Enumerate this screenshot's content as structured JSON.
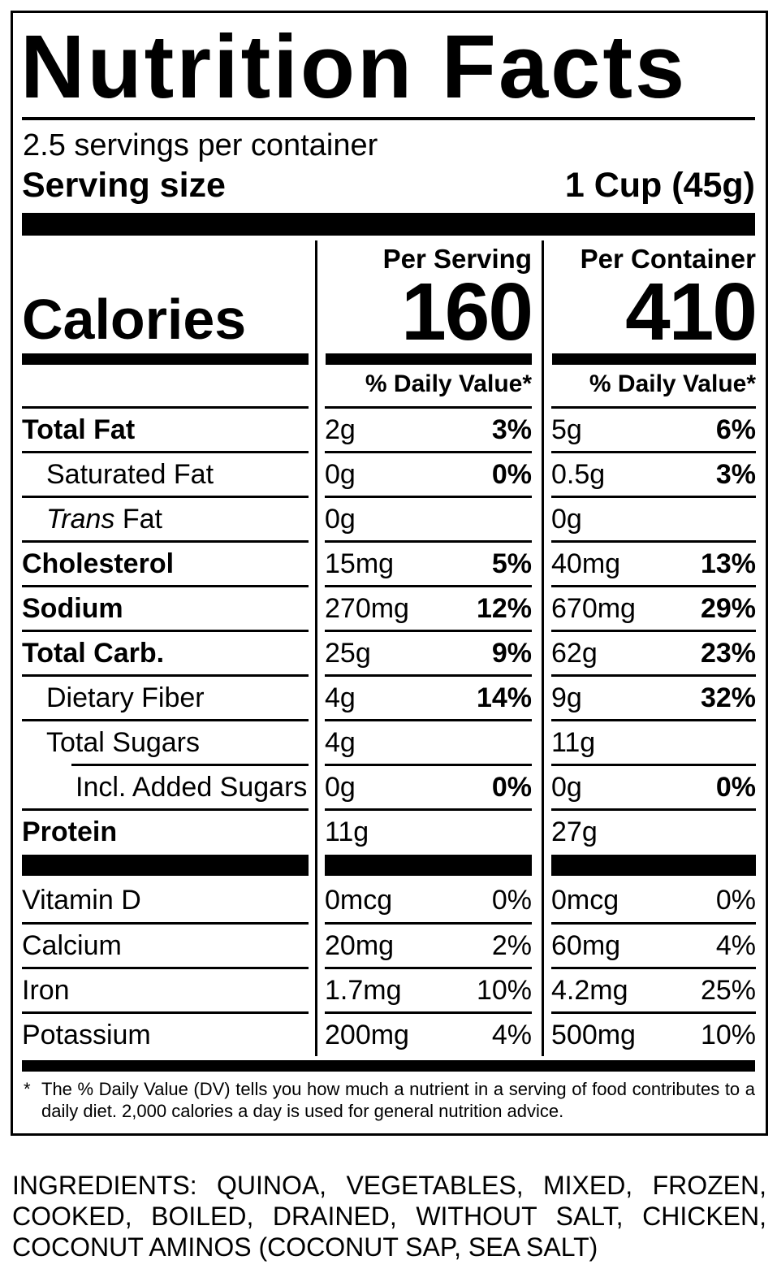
{
  "colors": {
    "ink": "#000000",
    "paper": "#ffffff"
  },
  "label": {
    "title": "Nutrition Facts",
    "servings_per_container": "2.5 servings per container",
    "serving_size_label": "Serving size",
    "serving_size_value": "1 Cup (45g)",
    "calories_label": "Calories",
    "columns": [
      {
        "header": "Per Serving",
        "calories": "160",
        "daily_value_header": "% Daily Value*"
      },
      {
        "header": "Per Container",
        "calories": "410",
        "daily_value_header": "% Daily Value*"
      }
    ],
    "nutrients": [
      {
        "name": "Total Fat",
        "serving": {
          "amount": "2g",
          "dv": "3%"
        },
        "container": {
          "amount": "5g",
          "dv": "6%"
        }
      },
      {
        "name": "Saturated Fat",
        "serving": {
          "amount": "0g",
          "dv": "0%"
        },
        "container": {
          "amount": "0.5g",
          "dv": "3%"
        }
      },
      {
        "name_italic": "Trans",
        "name_rest": " Fat",
        "serving": {
          "amount": "0g"
        },
        "container": {
          "amount": "0g"
        }
      },
      {
        "name": "Cholesterol",
        "serving": {
          "amount": "15mg",
          "dv": "5%"
        },
        "container": {
          "amount": "40mg",
          "dv": "13%"
        }
      },
      {
        "name": "Sodium",
        "serving": {
          "amount": "270mg",
          "dv": "12%"
        },
        "container": {
          "amount": "670mg",
          "dv": "29%"
        }
      },
      {
        "name": "Total Carb.",
        "serving": {
          "amount": "25g",
          "dv": "9%"
        },
        "container": {
          "amount": "62g",
          "dv": "23%"
        }
      },
      {
        "name": "Dietary Fiber",
        "serving": {
          "amount": "4g",
          "dv": "14%"
        },
        "container": {
          "amount": "9g",
          "dv": "32%"
        }
      },
      {
        "name": "Total Sugars",
        "serving": {
          "amount": "4g"
        },
        "container": {
          "amount": "11g"
        }
      },
      {
        "name": "Incl. Added Sugars",
        "serving": {
          "amount": "0g",
          "dv": "0%"
        },
        "container": {
          "amount": "0g",
          "dv": "0%"
        }
      },
      {
        "name": "Protein",
        "serving": {
          "amount": "11g"
        },
        "container": {
          "amount": "27g"
        }
      }
    ],
    "vitamins": [
      {
        "name": "Vitamin D",
        "serving": {
          "amount": "0mcg",
          "dv": "0%"
        },
        "container": {
          "amount": "0mcg",
          "dv": "0%"
        }
      },
      {
        "name": "Calcium",
        "serving": {
          "amount": "20mg",
          "dv": "2%"
        },
        "container": {
          "amount": "60mg",
          "dv": "4%"
        }
      },
      {
        "name": "Iron",
        "serving": {
          "amount": "1.7mg",
          "dv": "10%"
        },
        "container": {
          "amount": "4.2mg",
          "dv": "25%"
        }
      },
      {
        "name": "Potassium",
        "serving": {
          "amount": "200mg",
          "dv": "4%"
        },
        "container": {
          "amount": "500mg",
          "dv": "10%"
        }
      }
    ],
    "footnote_marker": "*",
    "footnote": "The % Daily Value (DV) tells you how much a nutrient in a serving of food contributes to a daily diet. 2,000 calories a day is used for general nutrition advice."
  },
  "ingredients": "INGREDIENTS: QUINOA, VEGETABLES, MIXED, FROZEN, COOKED, BOILED, DRAINED, WITHOUT SALT, CHICKEN, COCONUT AMINOS (COCONUT SAP, SEA SALT)"
}
